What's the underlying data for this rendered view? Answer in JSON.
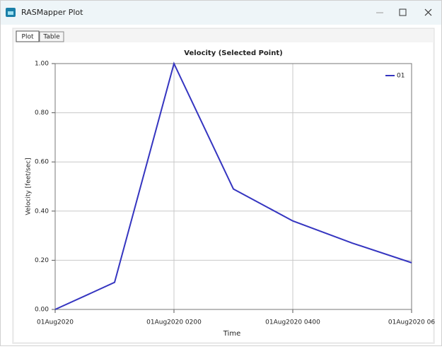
{
  "window": {
    "title": "RASMapper Plot"
  },
  "tabs": [
    "Plot",
    "Table"
  ],
  "chart_data": {
    "type": "line",
    "title": "Velocity (Selected Point)",
    "x_label": "Time",
    "y_label": "Velocity [feet/sec]",
    "x": [
      0,
      1,
      2,
      3,
      4,
      5,
      6
    ],
    "series": [
      {
        "name": "01",
        "color": "#3535c0",
        "values": [
          0.0,
          0.11,
          1.0,
          0.49,
          0.36,
          0.27,
          0.19
        ]
      }
    ],
    "xlim": [
      0,
      6
    ],
    "xticks": [
      {
        "value": 0,
        "label": "01Aug2020"
      },
      {
        "value": 2,
        "label": "01Aug2020 0200"
      },
      {
        "value": 4,
        "label": "01Aug2020 0400"
      },
      {
        "value": 6,
        "label": "01Aug2020 06"
      }
    ],
    "ylim": [
      0,
      1
    ],
    "yticks": [
      {
        "value": 0,
        "label": "0.00"
      },
      {
        "value": 0.2,
        "label": "0.20"
      },
      {
        "value": 0.4,
        "label": "0.40"
      },
      {
        "value": 0.6,
        "label": "0.60"
      },
      {
        "value": 0.8,
        "label": "0.80"
      },
      {
        "value": 1,
        "label": "1.00"
      }
    ],
    "grid": true,
    "legend": "upper right"
  }
}
